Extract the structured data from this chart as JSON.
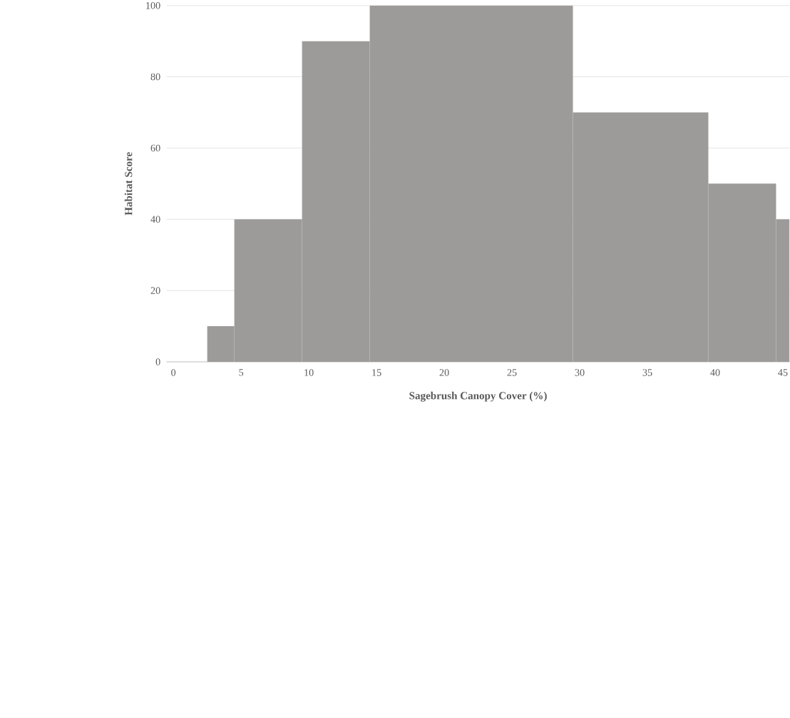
{
  "chart_data": {
    "type": "histogram",
    "xlabel": "Sagebrush Canopy Cover (%)",
    "ylabel": "Habitat Score",
    "bins": [
      2.5,
      4.5,
      9.5,
      14.5,
      29.5,
      39.5,
      44.5,
      45.5
    ],
    "values": [
      10,
      40,
      90,
      100,
      70,
      50,
      40
    ],
    "color": "#9d9b99",
    "xlim": [
      -0.5,
      45.5
    ],
    "ylim": [
      0,
      100
    ],
    "xticks": [
      0,
      5,
      10,
      15,
      20,
      25,
      30,
      35,
      40,
      45
    ],
    "yticks": [
      0,
      20,
      40,
      60,
      80,
      100
    ],
    "grid": "y"
  }
}
